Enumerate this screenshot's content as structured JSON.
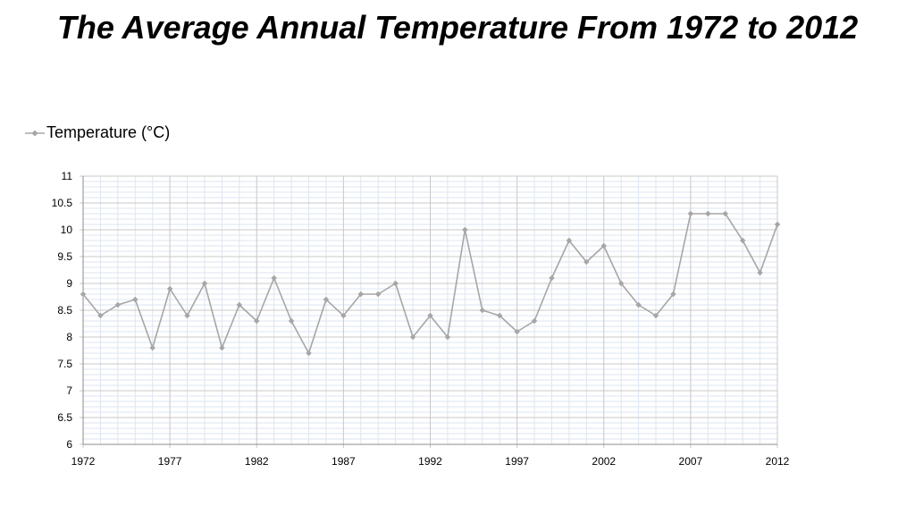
{
  "chart_data": {
    "type": "line",
    "title": "The Average Annual Temperature From 1972 to 2012",
    "xlabel": "",
    "ylabel": "",
    "x": [
      1972,
      1973,
      1974,
      1975,
      1976,
      1977,
      1978,
      1979,
      1980,
      1981,
      1982,
      1983,
      1984,
      1985,
      1986,
      1987,
      1988,
      1989,
      1990,
      1991,
      1992,
      1993,
      1994,
      1995,
      1996,
      1997,
      1998,
      1999,
      2000,
      2001,
      2002,
      2003,
      2004,
      2005,
      2006,
      2007,
      2008,
      2009,
      2010,
      2011,
      2012
    ],
    "series": [
      {
        "name": "Temperature (°C)",
        "color": "#a6a6a6",
        "values": [
          8.8,
          8.4,
          8.6,
          8.7,
          7.8,
          8.9,
          8.4,
          9.0,
          7.8,
          8.6,
          8.3,
          9.1,
          8.3,
          7.7,
          8.7,
          8.4,
          8.8,
          8.8,
          9.0,
          8.0,
          8.4,
          8.0,
          10.0,
          8.5,
          8.4,
          8.1,
          8.3,
          9.1,
          9.8,
          9.4,
          9.7,
          9.0,
          8.6,
          8.4,
          8.8,
          10.3,
          10.3,
          10.3,
          9.8,
          9.2,
          10.1
        ]
      }
    ],
    "ylim": [
      6,
      11
    ],
    "yticks": [
      "6",
      "6.5",
      "7",
      "7.5",
      "8",
      "8.5",
      "9",
      "9.5",
      "10",
      "10.5",
      "11"
    ],
    "xlim": [
      1972,
      2012
    ],
    "xticks": [
      "1972",
      "1977",
      "1982",
      "1987",
      "1992",
      "1997",
      "2002",
      "2007",
      "2012"
    ],
    "grid": true,
    "legend_position": "top-left",
    "colors": {
      "major_grid": "#c8c8c8",
      "minor_grid": "#dce6f2",
      "axis": "#8c8c8c"
    }
  }
}
